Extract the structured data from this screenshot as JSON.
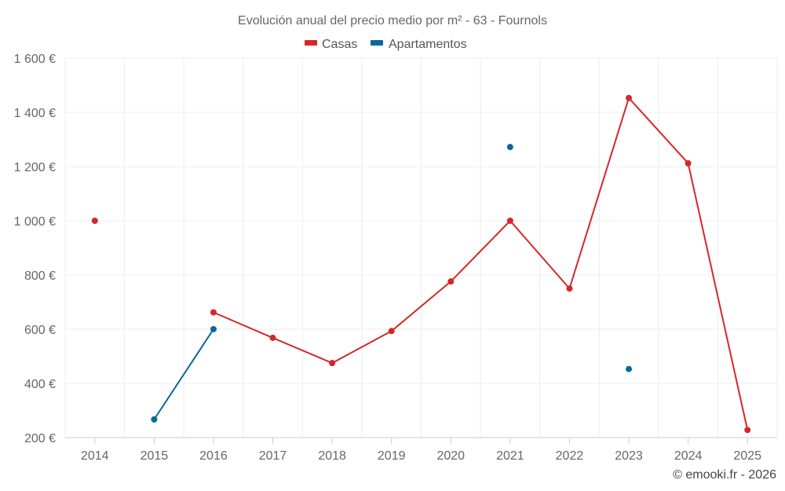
{
  "chart_data": {
    "type": "line",
    "title": "Evolución anual del precio medio por m² - 63 - Fournols",
    "categories": [
      "2014",
      "2015",
      "2016",
      "2017",
      "2018",
      "2019",
      "2020",
      "2021",
      "2022",
      "2023",
      "2024",
      "2025"
    ],
    "series": [
      {
        "name": "Casas",
        "color": "#d62728",
        "values": [
          1000,
          null,
          662,
          568,
          475,
          593,
          776,
          1000,
          750,
          1453,
          1212,
          228
        ]
      },
      {
        "name": "Apartamentos",
        "color": "#08689c",
        "values": [
          null,
          267,
          600,
          null,
          null,
          null,
          null,
          1272,
          null,
          453,
          null,
          null
        ]
      }
    ],
    "y_ticks": [
      200,
      400,
      600,
      800,
      1000,
      1200,
      1400,
      1600
    ],
    "y_tick_labels": [
      "200 €",
      "400 €",
      "600 €",
      "800 €",
      "1 000 €",
      "1 200 €",
      "1 400 €",
      "1 600 €"
    ],
    "ylim": [
      200,
      1600
    ],
    "grid": true,
    "legend_position": "top-center",
    "credit": "© emooki.fr - 2026"
  }
}
